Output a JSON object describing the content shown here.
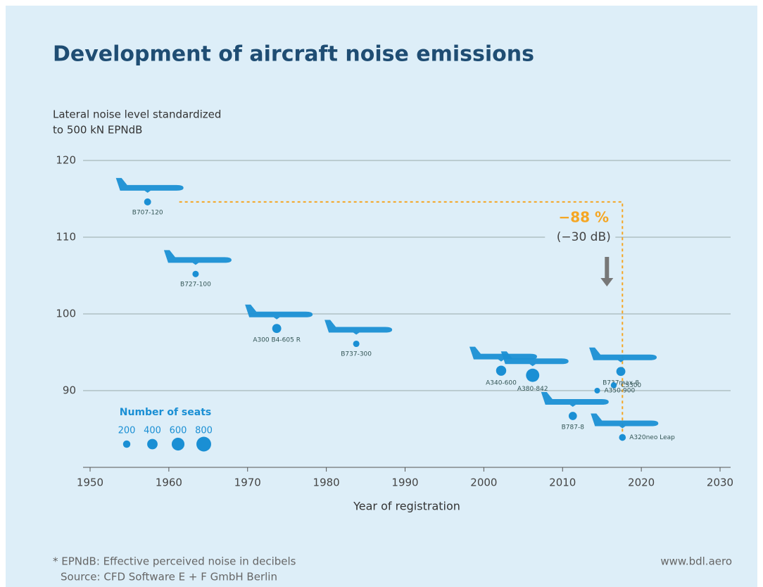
{
  "chart_data": {
    "type": "bubble",
    "title": "Development of aircraft noise emissions",
    "y_label": [
      "Lateral noise level standardized",
      "to 500 kN EPNdB"
    ],
    "x_label": "Year of registration",
    "labels": [
      "B707-120",
      "B727-100",
      "A300 B4-605 R",
      "B737-300",
      "A340-600",
      "A380-842",
      "B787-8",
      "A350-900",
      "B737max-8",
      "CS300",
      "A320neo Leap"
    ],
    "x": [
      1957.3,
      1963.4,
      1973.7,
      1983.8,
      2002.2,
      2006.2,
      2011.3,
      2014.4,
      2017.4,
      2016.5,
      2017.6
    ],
    "values": [
      114.6,
      105.2,
      98.1,
      96.1,
      92.6,
      92.0,
      86.7,
      90.0,
      92.5,
      90.7,
      83.9
    ],
    "sizes": [
      180,
      150,
      300,
      150,
      380,
      650,
      250,
      120,
      300,
      130,
      170
    ],
    "color": "#1a8fd4",
    "xlim": [
      1950,
      2030
    ],
    "xticks": [
      1950,
      1960,
      1970,
      1980,
      1990,
      2000,
      2010,
      2020,
      2030
    ],
    "ylim": [
      80,
      120
    ],
    "yticks": [
      90,
      100,
      110,
      120
    ],
    "grid": true,
    "size_legend": {
      "title": "Number of seats",
      "values": [
        200,
        400,
        600,
        800
      ]
    },
    "annotations": [
      {
        "text": "−88 %",
        "color": "#f5a623"
      },
      {
        "text": "(−30 dB)"
      }
    ],
    "footnotes": [
      "* EPNdB: Effective perceived noise in decibels",
      "Source: CFD Software E + F GmbH Berlin"
    ],
    "source_url": "www.bdl.aero"
  }
}
